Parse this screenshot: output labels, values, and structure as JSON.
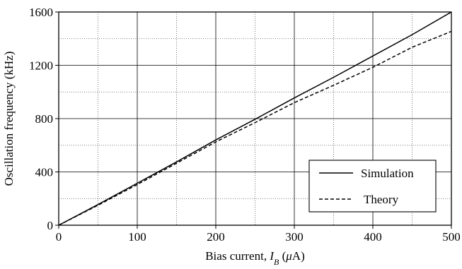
{
  "chart_data": {
    "type": "line",
    "title": "",
    "xlabel": "Bias current,",
    "xlabel_var": "I",
    "xlabel_sub": "B",
    "xlabel_unit_open": " (",
    "xlabel_unit_mu": "μ",
    "xlabel_unit_close": "A)",
    "ylabel": "Oscillation frequency (kHz)",
    "xlim": [
      0,
      500
    ],
    "ylim": [
      0,
      1600
    ],
    "xticks": [
      0,
      100,
      200,
      300,
      400,
      500
    ],
    "yticks": [
      0,
      400,
      800,
      1200,
      1600
    ],
    "minor_grid_x": [
      50,
      150,
      250,
      350,
      450
    ],
    "minor_grid_y": [
      200,
      600,
      1000,
      1400
    ],
    "grid": true,
    "legend_position": "bottom-right",
    "series": [
      {
        "name": "Simulation",
        "style": "solid",
        "x": [
          0,
          50,
          100,
          150,
          200,
          250,
          300,
          350,
          400,
          450,
          500
        ],
        "y": [
          0,
          155,
          315,
          475,
          640,
          795,
          955,
          1110,
          1270,
          1430,
          1600
        ]
      },
      {
        "name": "Theory",
        "style": "dashed",
        "x": [
          0,
          50,
          100,
          150,
          200,
          250,
          300,
          350,
          400,
          450,
          500
        ],
        "y": [
          0,
          150,
          305,
          465,
          625,
          770,
          920,
          1050,
          1185,
          1335,
          1455
        ]
      }
    ]
  }
}
